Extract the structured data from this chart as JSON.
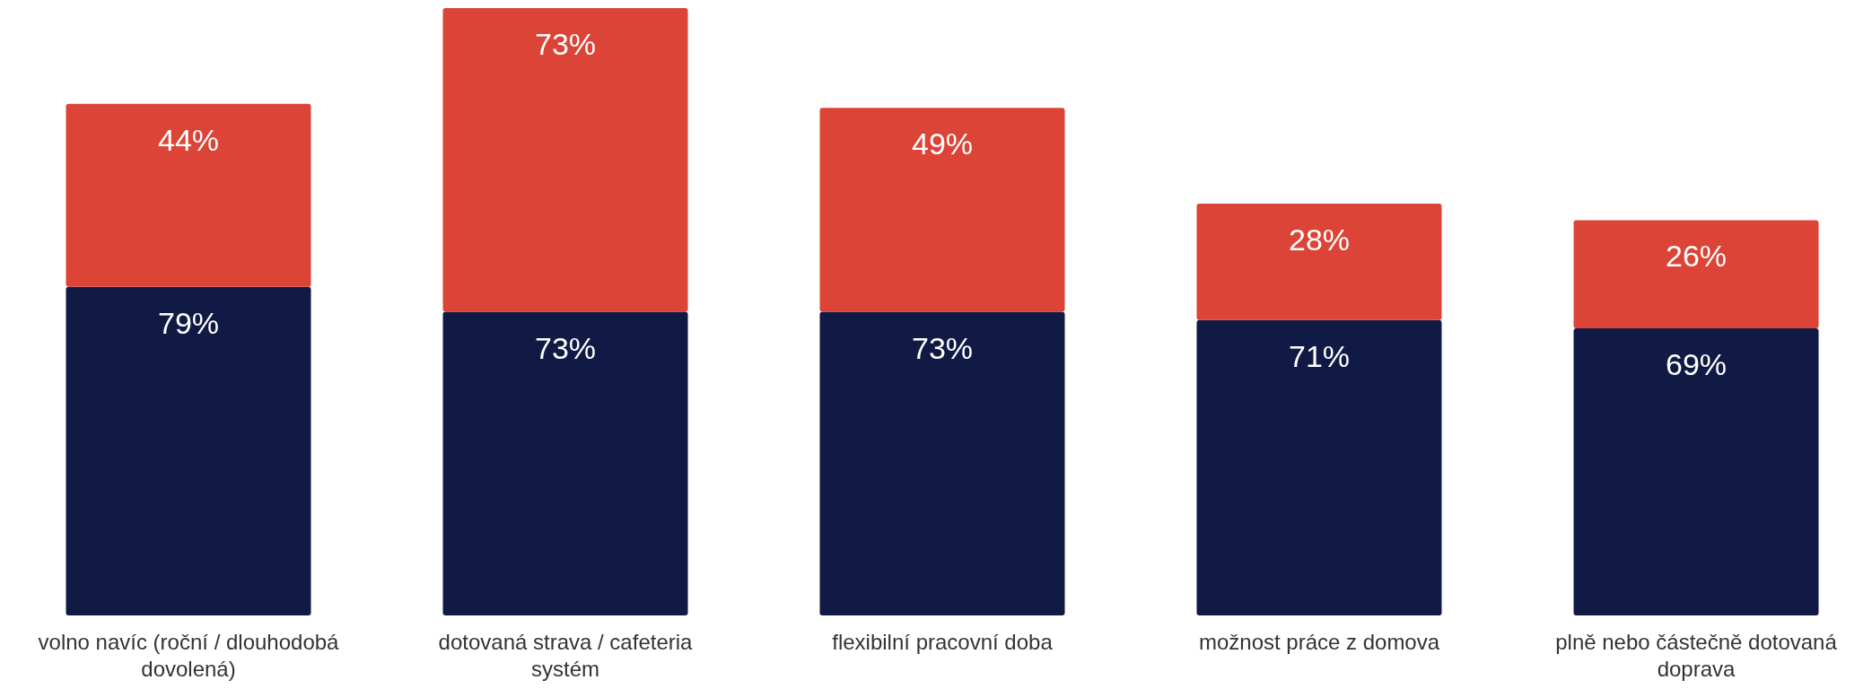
{
  "chart_data": {
    "type": "bar",
    "stacked": true,
    "categories": [
      "volno navíc (roční / dlouhodobá dovolená)",
      "dotovaná strava / cafeteria systém",
      "flexibilní pracovní doba",
      "možnost práce z domova",
      "plně nebo částečně dotovaná doprava"
    ],
    "series": [
      {
        "color": "#111a44",
        "values": [
          79,
          73,
          73,
          71,
          69
        ],
        "value_labels": [
          "79%",
          "73%",
          "73%",
          "71%",
          "69%"
        ]
      },
      {
        "color": "#db4437",
        "values": [
          44,
          73,
          49,
          28,
          26
        ],
        "value_labels": [
          "44%",
          "73%",
          "49%",
          "28%",
          "26%"
        ]
      }
    ]
  }
}
